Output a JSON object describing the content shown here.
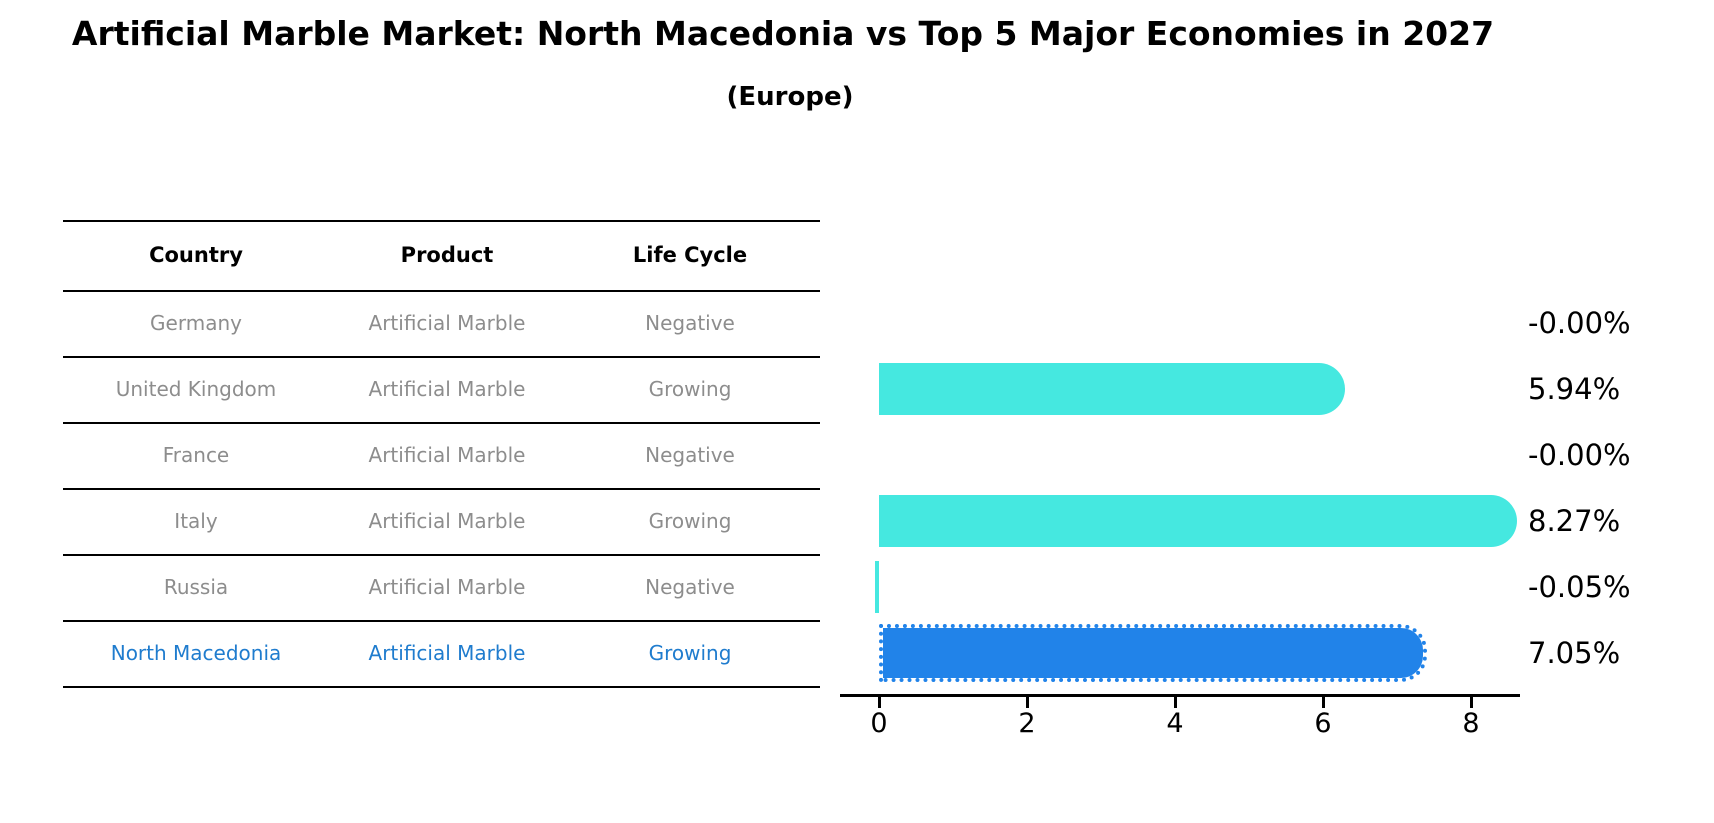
{
  "title": "Artificial Marble Market: North Macedonia vs Top 5 Major Economies in 2027",
  "subtitle": "(Europe)",
  "table": {
    "headers": {
      "country": "Country",
      "product": "Product",
      "life_cycle": "Life Cycle"
    },
    "rows": [
      {
        "country": "Germany",
        "product": "Artificial Marble",
        "life_cycle": "Negative",
        "highlight": false
      },
      {
        "country": "United Kingdom",
        "product": "Artificial Marble",
        "life_cycle": "Growing",
        "highlight": false
      },
      {
        "country": "France",
        "product": "Artificial Marble",
        "life_cycle": "Negative",
        "highlight": false
      },
      {
        "country": "Italy",
        "product": "Artificial Marble",
        "life_cycle": "Growing",
        "highlight": false
      },
      {
        "country": "Russia",
        "product": "Artificial Marble",
        "life_cycle": "Negative",
        "highlight": false
      },
      {
        "country": "North Macedonia",
        "product": "Artificial Marble",
        "life_cycle": "Growing",
        "highlight": true
      }
    ]
  },
  "chart_data": {
    "type": "bar",
    "orientation": "horizontal",
    "title": "Artificial Marble Market: North Macedonia vs Top 5 Major Economies in 2027 (Europe)",
    "categories": [
      "Germany",
      "United Kingdom",
      "France",
      "Italy",
      "Russia",
      "North Macedonia"
    ],
    "values": [
      -0.0,
      5.94,
      -0.0,
      8.27,
      -0.05,
      7.05
    ],
    "value_labels": [
      "-0.00%",
      "5.94%",
      "-0.00%",
      "8.27%",
      "-0.05%",
      "7.05%"
    ],
    "unit": "percent CAGR",
    "x_ticks": [
      0,
      2,
      4,
      6,
      8
    ],
    "xlim": [
      -0.5,
      8.8
    ],
    "grid": false,
    "legend": "none",
    "bar_color": "#45E8E0",
    "highlight_bar_color": "#2183E9",
    "highlight_index": 5,
    "highlight_text_color": "#1F7CCE"
  }
}
